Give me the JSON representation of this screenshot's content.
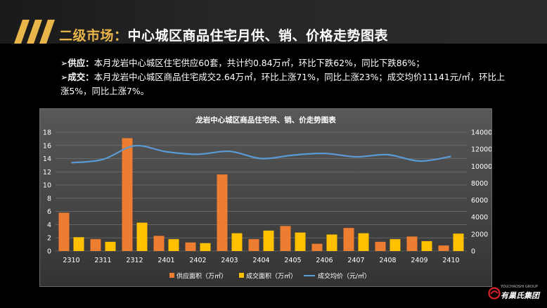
{
  "header": {
    "title_prefix": "二级市场：",
    "title_main": "中心城区商品住宅月供、销、价格走势图表"
  },
  "bullets": [
    {
      "lead": "➢供应：",
      "text": "本月龙岩中心城区住宅供应60套，共计约0.84万㎡，环比下跌62%，同比下跌86%；"
    },
    {
      "lead": "➢成交：",
      "text": "本月龙岩中心城区商品住宅成交2.64万㎡，环比上涨71%，同比上涨23%；成交均价11141元/㎡，环比上涨5%，同比上涨7%。"
    }
  ],
  "chart_data": {
    "type": "bar",
    "title": "龙岩中心城区商品住宅供、销、价走势图表",
    "categories": [
      "2310",
      "2311",
      "2312",
      "2401",
      "2402",
      "2403",
      "2404",
      "2405",
      "2406",
      "2407",
      "2408",
      "2409",
      "2410"
    ],
    "series": [
      {
        "name": "供应面积（万㎡）",
        "type": "bar",
        "axis": "left",
        "color": "#ed7d31",
        "values": [
          5.8,
          1.8,
          17.1,
          2.3,
          1.3,
          11.6,
          1.8,
          3.8,
          1.1,
          3.5,
          1.4,
          2.2,
          0.84
        ]
      },
      {
        "name": "成交面积（万㎡）",
        "type": "bar",
        "axis": "left",
        "color": "#ffc000",
        "values": [
          2.1,
          1.4,
          4.3,
          1.8,
          1.2,
          2.7,
          3.1,
          2.8,
          2.5,
          2.7,
          1.8,
          1.5,
          2.64
        ]
      },
      {
        "name": "成交均价（元/㎡）",
        "type": "line",
        "axis": "right",
        "color": "#5b9bd5",
        "values": [
          10400,
          10800,
          12400,
          11700,
          11400,
          11750,
          10900,
          11300,
          11500,
          11100,
          11350,
          10600,
          11141
        ]
      }
    ],
    "y_left": {
      "min": 0,
      "max": 18,
      "ticks": [
        0,
        2,
        4,
        6,
        8,
        10,
        12,
        14,
        16,
        18
      ]
    },
    "y_right": {
      "min": 0,
      "max": 14000,
      "ticks": [
        0,
        2000,
        4000,
        6000,
        8000,
        10000,
        12000,
        14000
      ]
    },
    "grid": true,
    "legend_position": "bottom"
  },
  "logo": {
    "en": "YOUCHAOSHI GROUP",
    "cn": "有巢氏集团"
  }
}
